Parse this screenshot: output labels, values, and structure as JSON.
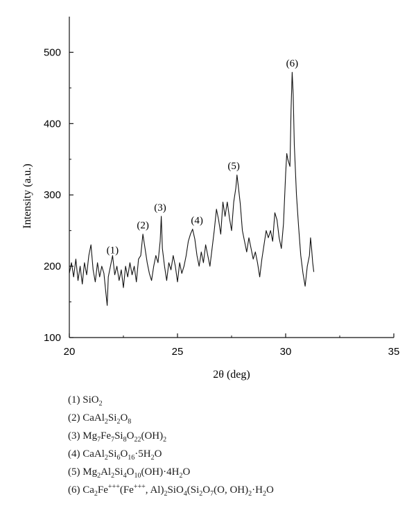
{
  "chart_data": {
    "type": "line",
    "title": "",
    "xlabel": "2θ (deg)",
    "ylabel": "Intensity (a.u.)",
    "xlim": [
      20,
      35
    ],
    "ylim": [
      100,
      550
    ],
    "x_ticks": [
      20,
      25,
      30,
      35
    ],
    "y_ticks": [
      100,
      200,
      300,
      400,
      500
    ],
    "grid": false,
    "series": [
      {
        "color": "#111111",
        "points": [
          [
            20.0,
            190
          ],
          [
            20.1,
            205
          ],
          [
            20.2,
            185
          ],
          [
            20.3,
            210
          ],
          [
            20.4,
            180
          ],
          [
            20.5,
            200
          ],
          [
            20.6,
            175
          ],
          [
            20.7,
            205
          ],
          [
            20.8,
            188
          ],
          [
            20.9,
            215
          ],
          [
            21.0,
            230
          ],
          [
            21.1,
            195
          ],
          [
            21.2,
            178
          ],
          [
            21.3,
            205
          ],
          [
            21.4,
            185
          ],
          [
            21.5,
            200
          ],
          [
            21.6,
            190
          ],
          [
            21.7,
            160
          ],
          [
            21.75,
            145
          ],
          [
            21.8,
            185
          ],
          [
            21.9,
            200
          ],
          [
            22.0,
            215
          ],
          [
            22.1,
            188
          ],
          [
            22.2,
            200
          ],
          [
            22.3,
            180
          ],
          [
            22.4,
            195
          ],
          [
            22.5,
            170
          ],
          [
            22.6,
            200
          ],
          [
            22.7,
            185
          ],
          [
            22.8,
            205
          ],
          [
            22.9,
            188
          ],
          [
            23.0,
            200
          ],
          [
            23.1,
            178
          ],
          [
            23.2,
            210
          ],
          [
            23.3,
            215
          ],
          [
            23.4,
            245
          ],
          [
            23.5,
            225
          ],
          [
            23.6,
            205
          ],
          [
            23.7,
            190
          ],
          [
            23.8,
            180
          ],
          [
            23.9,
            200
          ],
          [
            24.0,
            215
          ],
          [
            24.1,
            205
          ],
          [
            24.2,
            235
          ],
          [
            24.25,
            270
          ],
          [
            24.3,
            225
          ],
          [
            24.4,
            200
          ],
          [
            24.5,
            180
          ],
          [
            24.6,
            205
          ],
          [
            24.7,
            195
          ],
          [
            24.8,
            215
          ],
          [
            24.9,
            200
          ],
          [
            25.0,
            178
          ],
          [
            25.1,
            205
          ],
          [
            25.2,
            190
          ],
          [
            25.3,
            200
          ],
          [
            25.4,
            215
          ],
          [
            25.5,
            235
          ],
          [
            25.6,
            245
          ],
          [
            25.7,
            252
          ],
          [
            25.8,
            238
          ],
          [
            25.9,
            215
          ],
          [
            26.0,
            200
          ],
          [
            26.1,
            220
          ],
          [
            26.2,
            205
          ],
          [
            26.3,
            230
          ],
          [
            26.4,
            215
          ],
          [
            26.5,
            200
          ],
          [
            26.6,
            225
          ],
          [
            26.7,
            250
          ],
          [
            26.8,
            280
          ],
          [
            26.9,
            265
          ],
          [
            27.0,
            245
          ],
          [
            27.1,
            290
          ],
          [
            27.2,
            270
          ],
          [
            27.3,
            290
          ],
          [
            27.4,
            268
          ],
          [
            27.5,
            250
          ],
          [
            27.6,
            290
          ],
          [
            27.7,
            310
          ],
          [
            27.75,
            328
          ],
          [
            27.8,
            315
          ],
          [
            27.9,
            288
          ],
          [
            28.0,
            250
          ],
          [
            28.1,
            235
          ],
          [
            28.2,
            220
          ],
          [
            28.3,
            240
          ],
          [
            28.4,
            225
          ],
          [
            28.5,
            210
          ],
          [
            28.6,
            220
          ],
          [
            28.7,
            205
          ],
          [
            28.8,
            185
          ],
          [
            28.9,
            210
          ],
          [
            29.0,
            230
          ],
          [
            29.1,
            250
          ],
          [
            29.2,
            240
          ],
          [
            29.3,
            250
          ],
          [
            29.4,
            235
          ],
          [
            29.5,
            275
          ],
          [
            29.6,
            265
          ],
          [
            29.7,
            240
          ],
          [
            29.8,
            225
          ],
          [
            29.9,
            260
          ],
          [
            30.0,
            330
          ],
          [
            30.05,
            358
          ],
          [
            30.1,
            350
          ],
          [
            30.2,
            340
          ],
          [
            30.25,
            420
          ],
          [
            30.3,
            472
          ],
          [
            30.35,
            440
          ],
          [
            30.4,
            370
          ],
          [
            30.5,
            300
          ],
          [
            30.6,
            255
          ],
          [
            30.7,
            215
          ],
          [
            30.8,
            190
          ],
          [
            30.9,
            172
          ],
          [
            31.0,
            200
          ],
          [
            31.1,
            215
          ],
          [
            31.15,
            240
          ],
          [
            31.2,
            225
          ],
          [
            31.25,
            205
          ],
          [
            31.3,
            192
          ]
        ]
      }
    ],
    "annotations": [
      {
        "label": "(1)",
        "x": 22.0,
        "y": 218
      },
      {
        "label": "(2)",
        "x": 23.4,
        "y": 253
      },
      {
        "label": "(3)",
        "x": 24.2,
        "y": 278
      },
      {
        "label": "(4)",
        "x": 25.9,
        "y": 260
      },
      {
        "label": "(5)",
        "x": 27.6,
        "y": 336
      },
      {
        "label": "(6)",
        "x": 30.3,
        "y": 480
      }
    ]
  },
  "legend": [
    {
      "num": "(1)",
      "formula": "SiO<sub>2</sub>"
    },
    {
      "num": "(2)",
      "formula": "CaAl<sub>2</sub>Si<sub>2</sub>O<sub>8</sub>"
    },
    {
      "num": "(3)",
      "formula": "Mg<sub>7</sub>Fe<sub>7</sub>Si<sub>8</sub>O<sub>22</sub>(OH)<sub>2</sub>"
    },
    {
      "num": "(4)",
      "formula": "CaAl<sub>2</sub>Si<sub>6</sub>O<sub>16</sub>·5H<sub>2</sub>O"
    },
    {
      "num": "(5)",
      "formula": "Mg<sub>2</sub>Al<sub>2</sub>Si<sub>4</sub>O<sub>10</sub>(OH)·4H<sub>2</sub>O"
    },
    {
      "num": "(6)",
      "formula": "Ca<sub>2</sub>Fe<sup>+++</sup>(Fe<sup>+++</sup>, Al)<sub>2</sub>SiO<sub>4</sub>(Si<sub>2</sub>O<sub>7</sub>(O, OH)<sub>2</sub>·H<sub>2</sub>O"
    }
  ]
}
